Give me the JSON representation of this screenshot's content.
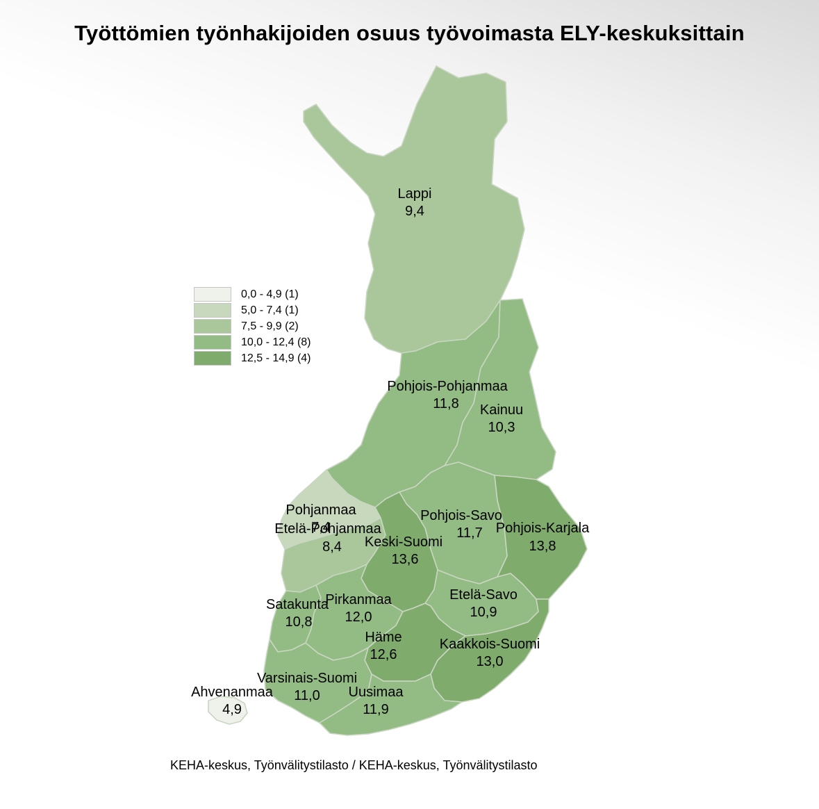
{
  "title": "Työttömien työnhakijoiden osuus työvoimasta ELY-keskuksittain",
  "source": "KEHA-keskus, Työnvälitystilasto / KEHA-keskus, Työnvälitystilasto",
  "colors": {
    "class_1": "#eef2ea",
    "class_2": "#c7d8bd",
    "class_3": "#a9c79b",
    "class_4": "#93bb84",
    "class_5": "#7fab6c",
    "border": "#c9d6c2"
  },
  "legend": [
    {
      "label": "0,0 - 4,9 (1)",
      "color": "#eef2ea"
    },
    {
      "label": "5,0 - 7,4 (1)",
      "color": "#c7d8bd"
    },
    {
      "label": "7,5 - 9,9 (2)",
      "color": "#a9c79b"
    },
    {
      "label": "10,0 - 12,4 (8)",
      "color": "#93bb84"
    },
    {
      "label": "12,5 - 14,9 (4)",
      "color": "#7fab6c"
    }
  ],
  "regions": [
    {
      "name": "Lappi",
      "value": "9,4"
    },
    {
      "name": "Pohjois-Pohjanmaa",
      "value": "11,8"
    },
    {
      "name": "Kainuu",
      "value": "10,3"
    },
    {
      "name": "Pohjanmaa",
      "value": "7,4"
    },
    {
      "name": "Etelä-Pohjanmaa",
      "value": "8,4"
    },
    {
      "name": "Pohjois-Savo",
      "value": "11,7"
    },
    {
      "name": "Pohjois-Karjala",
      "value": "13,8"
    },
    {
      "name": "Keski-Suomi",
      "value": "13,6"
    },
    {
      "name": "Satakunta",
      "value": "10,8"
    },
    {
      "name": "Pirkanmaa",
      "value": "12,0"
    },
    {
      "name": "Etelä-Savo",
      "value": "10,9"
    },
    {
      "name": "Häme",
      "value": "12,6"
    },
    {
      "name": "Kaakkois-Suomi",
      "value": "13,0"
    },
    {
      "name": "Varsinais-Suomi",
      "value": "11,0"
    },
    {
      "name": "Ahvenanmaa",
      "value": "4,9"
    },
    {
      "name": "Uusimaa",
      "value": "11,9"
    }
  ]
}
